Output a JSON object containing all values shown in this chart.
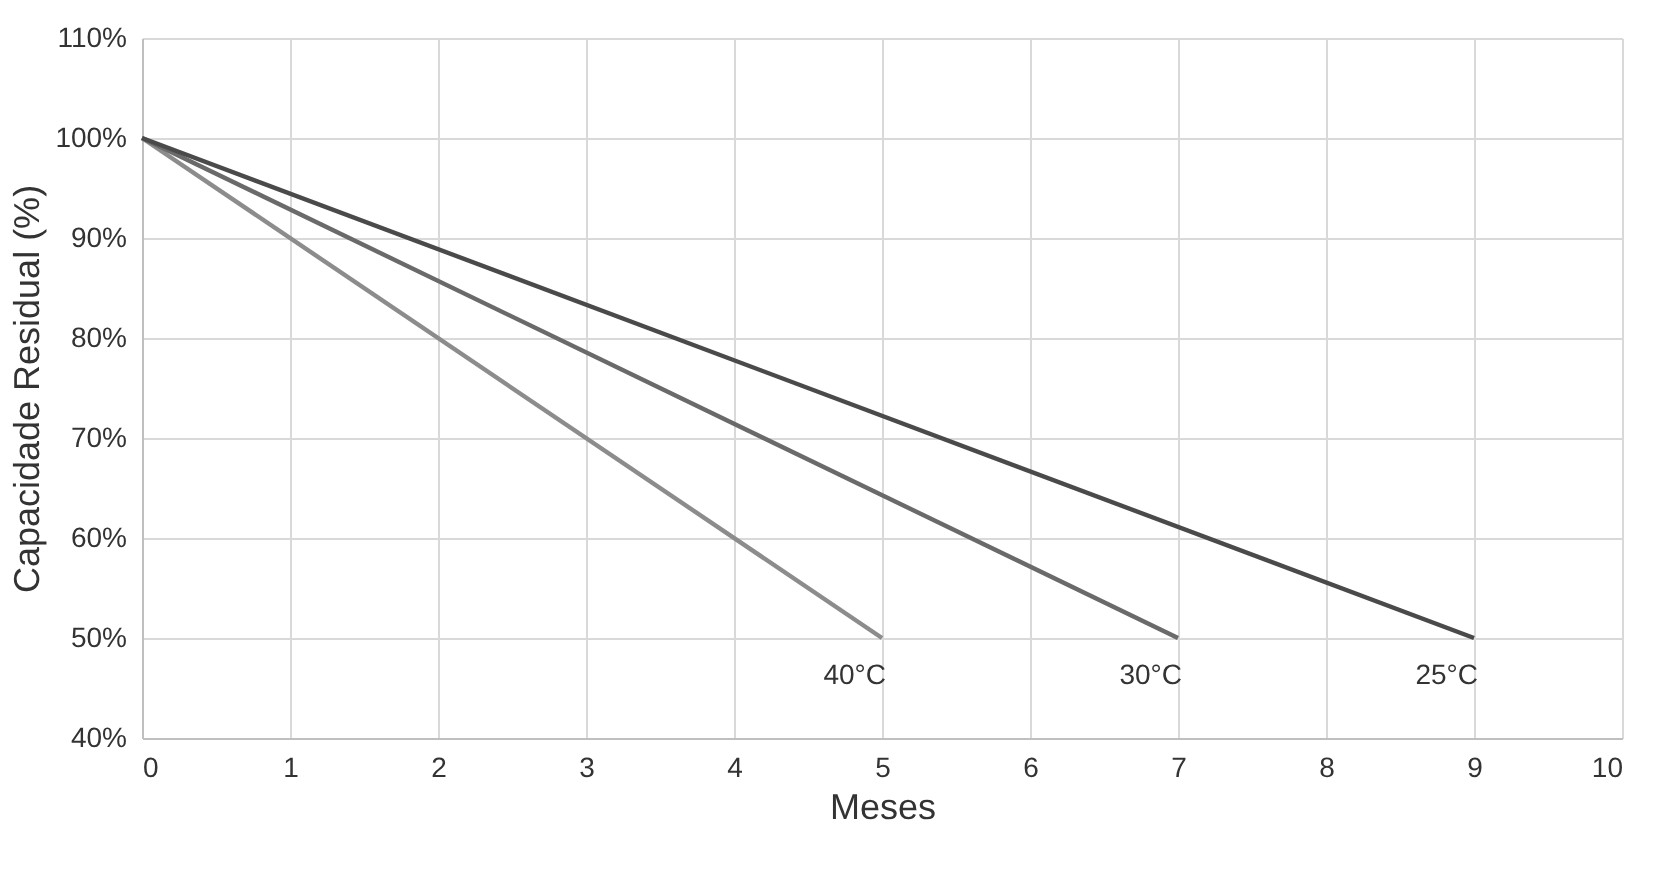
{
  "chart_data": {
    "type": "line",
    "xlabel": "Meses",
    "ylabel": "Capacidade Residual (%)",
    "series": [
      {
        "name": "40°C",
        "color": "#8c8c8c",
        "x": [
          0,
          5
        ],
        "values": [
          100,
          50
        ]
      },
      {
        "name": "30°C",
        "color": "#6a6a6a",
        "x": [
          0,
          7
        ],
        "values": [
          100,
          50
        ]
      },
      {
        "name": "25°C",
        "color": "#4a4a4a",
        "x": [
          0,
          9
        ],
        "values": [
          100,
          50
        ]
      }
    ],
    "xlim": [
      0,
      10
    ],
    "xticks": [
      0,
      1,
      2,
      3,
      4,
      5,
      6,
      7,
      8,
      9,
      10
    ],
    "ylim": [
      40,
      110
    ],
    "yticks": [
      {
        "value": 40,
        "label": "40%"
      },
      {
        "value": 50,
        "label": "50%"
      },
      {
        "value": 60,
        "label": "60%"
      },
      {
        "value": 70,
        "label": "70%"
      },
      {
        "value": 80,
        "label": "80%"
      },
      {
        "value": 90,
        "label": "90%"
      },
      {
        "value": 100,
        "label": "100%"
      },
      {
        "value": 110,
        "label": "110%"
      }
    ],
    "grid": true,
    "legend": false,
    "marker": "none",
    "line_style": "solid"
  }
}
